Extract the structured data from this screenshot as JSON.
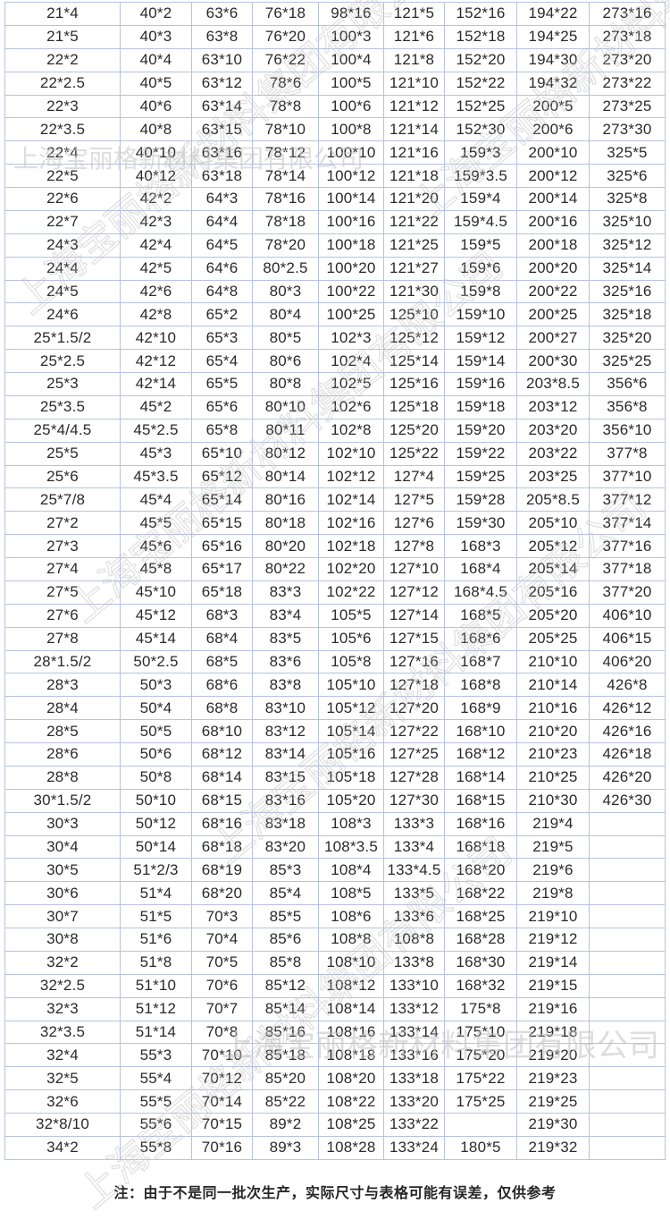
{
  "watermark": {
    "text": "上海宝丽格新材料集团有限公司"
  },
  "note": {
    "prefix": "注：",
    "text": "由于不是同一批次生产，实际尺寸与表格可能有误差，仅供参考"
  },
  "table": {
    "rows": [
      [
        "21*4",
        "40*2",
        "63*6",
        "76*18",
        "98*16",
        "121*5",
        "152*16",
        "194*22",
        "273*16"
      ],
      [
        "21*5",
        "40*3",
        "63*8",
        "76*20",
        "100*3",
        "121*6",
        "152*18",
        "194*25",
        "273*18"
      ],
      [
        "22*2",
        "40*4",
        "63*10",
        "76*22",
        "100*4",
        "121*8",
        "152*20",
        "194*30",
        "273*20"
      ],
      [
        "22*2.5",
        "40*5",
        "63*12",
        "78*6",
        "100*5",
        "121*10",
        "152*22",
        "194*32",
        "273*22"
      ],
      [
        "22*3",
        "40*6",
        "63*14",
        "78*8",
        "100*6",
        "121*12",
        "152*25",
        "200*5",
        "273*25"
      ],
      [
        "22*3.5",
        "40*8",
        "63*15",
        "78*10",
        "100*8",
        "121*14",
        "152*30",
        "200*6",
        "273*30"
      ],
      [
        "22*4",
        "40*10",
        "63*16",
        "78*12",
        "100*10",
        "121*16",
        "159*3",
        "200*10",
        "325*5"
      ],
      [
        "22*5",
        "40*12",
        "63*18",
        "78*14",
        "100*12",
        "121*18",
        "159*3.5",
        "200*12",
        "325*6"
      ],
      [
        "22*6",
        "42*2",
        "64*3",
        "78*16",
        "100*14",
        "121*20",
        "159*4",
        "200*14",
        "325*8"
      ],
      [
        "22*7",
        "42*3",
        "64*4",
        "78*18",
        "100*16",
        "121*22",
        "159*4.5",
        "200*16",
        "325*10"
      ],
      [
        "24*3",
        "42*4",
        "64*5",
        "78*20",
        "100*18",
        "121*25",
        "159*5",
        "200*18",
        "325*12"
      ],
      [
        "24*4",
        "42*5",
        "64*6",
        "80*2.5",
        "100*20",
        "121*27",
        "159*6",
        "200*20",
        "325*14"
      ],
      [
        "24*5",
        "42*6",
        "64*8",
        "80*3",
        "100*22",
        "121*30",
        "159*8",
        "200*22",
        "325*16"
      ],
      [
        "24*6",
        "42*8",
        "65*2",
        "80*4",
        "100*25",
        "125*10",
        "159*10",
        "200*25",
        "325*18"
      ],
      [
        "25*1.5/2",
        "42*10",
        "65*3",
        "80*5",
        "102*3",
        "125*12",
        "159*12",
        "200*27",
        "325*20"
      ],
      [
        "25*2.5",
        "42*12",
        "65*4",
        "80*6",
        "102*4",
        "125*14",
        "159*14",
        "200*30",
        "325*25"
      ],
      [
        "25*3",
        "42*14",
        "65*5",
        "80*8",
        "102*5",
        "125*16",
        "159*16",
        "203*8.5",
        "356*6"
      ],
      [
        "25*3.5",
        "45*2",
        "65*6",
        "80*10",
        "102*6",
        "125*18",
        "159*18",
        "203*12",
        "356*8"
      ],
      [
        "25*4/4.5",
        "45*2.5",
        "65*8",
        "80*11",
        "102*8",
        "125*20",
        "159*20",
        "203*20",
        "356*10"
      ],
      [
        "25*5",
        "45*3",
        "65*10",
        "80*12",
        "102*10",
        "125*22",
        "159*22",
        "203*22",
        "377*8"
      ],
      [
        "25*6",
        "45*3.5",
        "65*12",
        "80*14",
        "102*12",
        "127*4",
        "159*25",
        "203*25",
        "377*10"
      ],
      [
        "25*7/8",
        "45*4",
        "65*14",
        "80*16",
        "102*14",
        "127*5",
        "159*28",
        "205*8.5",
        "377*12"
      ],
      [
        "27*2",
        "45*5",
        "65*15",
        "80*18",
        "102*16",
        "127*6",
        "159*30",
        "205*10",
        "377*14"
      ],
      [
        "27*3",
        "45*6",
        "65*16",
        "80*20",
        "102*18",
        "127*8",
        "168*3",
        "205*12",
        "377*16"
      ],
      [
        "27*4",
        "45*8",
        "65*17",
        "80*22",
        "102*20",
        "127*10",
        "168*4",
        "205*14",
        "377*18"
      ],
      [
        "27*5",
        "45*10",
        "65*18",
        "83*3",
        "102*22",
        "127*12",
        "168*4.5",
        "205*16",
        "377*20"
      ],
      [
        "27*6",
        "45*12",
        "68*3",
        "83*4",
        "105*5",
        "127*14",
        "168*5",
        "205*20",
        "406*10"
      ],
      [
        "27*8",
        "45*14",
        "68*4",
        "83*5",
        "105*6",
        "127*15",
        "168*6",
        "205*25",
        "406*15"
      ],
      [
        "28*1.5/2",
        "50*2.5",
        "68*5",
        "83*6",
        "105*8",
        "127*16",
        "168*7",
        "210*10",
        "406*20"
      ],
      [
        "28*3",
        "50*3",
        "68*6",
        "83*8",
        "105*10",
        "127*18",
        "168*8",
        "210*14",
        "426*8"
      ],
      [
        "28*4",
        "50*4",
        "68*8",
        "83*10",
        "105*12",
        "127*20",
        "168*9",
        "210*16",
        "426*12"
      ],
      [
        "28*5",
        "50*5",
        "68*10",
        "83*12",
        "105*14",
        "127*22",
        "168*10",
        "210*20",
        "426*16"
      ],
      [
        "28*6",
        "50*6",
        "68*12",
        "83*14",
        "105*16",
        "127*25",
        "168*12",
        "210*23",
        "426*18"
      ],
      [
        "28*8",
        "50*8",
        "68*14",
        "83*15",
        "105*18",
        "127*28",
        "168*14",
        "210*25",
        "426*20"
      ],
      [
        "30*1.5/2",
        "50*10",
        "68*15",
        "83*16",
        "105*20",
        "127*30",
        "168*15",
        "210*30",
        "426*30"
      ],
      [
        "30*3",
        "50*12",
        "68*16",
        "83*18",
        "108*3",
        "133*3",
        "168*16",
        "219*4",
        ""
      ],
      [
        "30*4",
        "50*14",
        "68*18",
        "83*20",
        "108*3.5",
        "133*4",
        "168*18",
        "219*5",
        ""
      ],
      [
        "30*5",
        "51*2/3",
        "68*19",
        "85*3",
        "108*4",
        "133*4.5",
        "168*20",
        "219*6",
        ""
      ],
      [
        "30*6",
        "51*4",
        "68*20",
        "85*4",
        "108*5",
        "133*5",
        "168*22",
        "219*8",
        ""
      ],
      [
        "30*7",
        "51*5",
        "70*3",
        "85*5",
        "108*6",
        "133*6",
        "168*25",
        "219*10",
        ""
      ],
      [
        "30*8",
        "51*6",
        "70*4",
        "85*6",
        "108*8",
        "108*8",
        "168*28",
        "219*12",
        ""
      ],
      [
        "32*2",
        "51*8",
        "70*5",
        "85*8",
        "108*10",
        "133*8",
        "168*30",
        "219*14",
        ""
      ],
      [
        "32*2.5",
        "51*10",
        "70*6",
        "85*12",
        "108*12",
        "133*10",
        "168*32",
        "219*15",
        ""
      ],
      [
        "32*3",
        "51*12",
        "70*7",
        "85*14",
        "108*14",
        "133*12",
        "175*8",
        "219*16",
        ""
      ],
      [
        "32*3.5",
        "51*14",
        "70*8",
        "85*16",
        "108*16",
        "133*14",
        "175*10",
        "219*18",
        ""
      ],
      [
        "32*4",
        "55*3",
        "70*10",
        "85*18",
        "108*18",
        "133*16",
        "175*20",
        "219*20",
        ""
      ],
      [
        "32*5",
        "55*4",
        "70*12",
        "85*20",
        "108*20",
        "133*18",
        "175*22",
        "219*23",
        ""
      ],
      [
        "32*6",
        "55*5",
        "70*14",
        "85*22",
        "108*22",
        "133*20",
        "175*25",
        "219*25",
        ""
      ],
      [
        "32*8/10",
        "55*6",
        "70*15",
        "89*2",
        "108*25",
        "133*22",
        "",
        "219*30",
        ""
      ],
      [
        "34*2",
        "55*8",
        "70*16",
        "89*3",
        "108*28",
        "133*24",
        "180*5",
        "219*32",
        ""
      ]
    ]
  }
}
